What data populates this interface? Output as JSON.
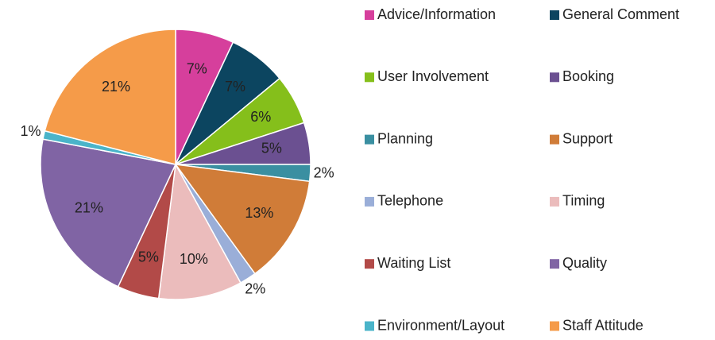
{
  "chart_data": {
    "type": "pie",
    "categories": [
      "Advice/Information",
      "General Comment",
      "User Involvement",
      "Booking",
      "Planning",
      "Support",
      "Telephone",
      "Timing",
      "Waiting List",
      "Quality",
      "Environment/Layout",
      "Staff Attitude"
    ],
    "values": [
      7,
      7,
      6,
      5,
      2,
      13,
      2,
      10,
      5,
      21,
      1,
      21
    ],
    "value_labels": [
      "7%",
      "7%",
      "6%",
      "5%",
      "2%",
      "13%",
      "2%",
      "10%",
      "5%",
      "21%",
      "1%",
      "21%"
    ],
    "colors": [
      "#d63f9c",
      "#0c4560",
      "#85bf1b",
      "#6b5091",
      "#3a8fa1",
      "#d07c38",
      "#9aaed8",
      "#ebbcbc",
      "#b24a48",
      "#8064a4",
      "#4ab4c9",
      "#f59b49"
    ],
    "legend": "right"
  }
}
